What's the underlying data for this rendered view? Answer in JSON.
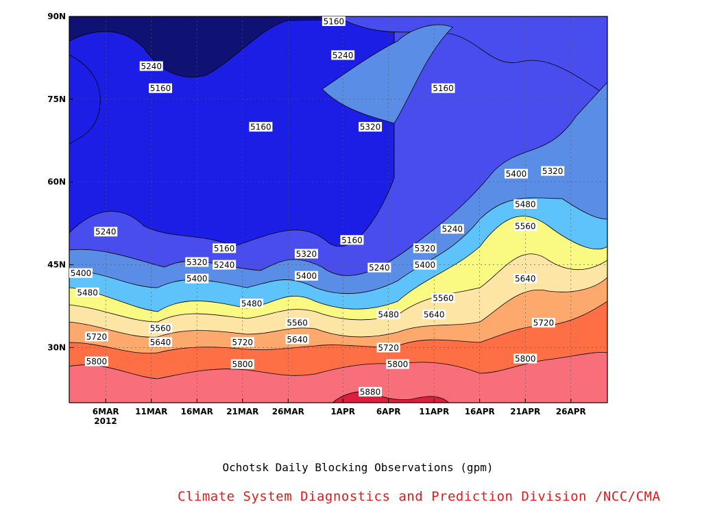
{
  "chart_data": {
    "type": "filled-contour",
    "title": "Ochotsk Daily Blocking Observations (gpm)",
    "xlabel": "",
    "ylabel": "",
    "x_range": [
      "2012-03-02",
      "2012-04-30"
    ],
    "y_range": [
      20,
      90
    ],
    "x_ticks": [
      "6MAR",
      "11MAR",
      "16MAR",
      "21MAR",
      "26MAR",
      "1APR",
      "6APR",
      "11APR",
      "16APR",
      "21APR",
      "26APR"
    ],
    "x_tick_dates": [
      "2012-03-06",
      "2012-03-11",
      "2012-03-16",
      "2012-03-21",
      "2012-03-26",
      "2012-04-01",
      "2012-04-06",
      "2012-04-11",
      "2012-04-16",
      "2012-04-21",
      "2012-04-26"
    ],
    "x_year_label": "2012",
    "y_ticks": [
      "90N",
      "75N",
      "60N",
      "45N",
      "30N"
    ],
    "y_tick_values": [
      90,
      75,
      60,
      45,
      30
    ],
    "grid": true,
    "contour_levels": [
      5160,
      5240,
      5320,
      5400,
      5480,
      5560,
      5640,
      5720,
      5800,
      5880
    ],
    "level_colors": [
      "#0f1273",
      "#1c1ee6",
      "#4a4ded",
      "#5a8ee6",
      "#5ec3fa",
      "#fafa82",
      "#fde5a5",
      "#fda86c",
      "#ff6f45",
      "#f86e7b",
      "#dc1f3c"
    ],
    "labels": [
      {
        "value": "5160",
        "date": "2012-03-31",
        "lat": 90
      },
      {
        "value": "5240",
        "date": "2012-04-01",
        "lat": 83
      },
      {
        "value": "5240",
        "date": "2012-03-11",
        "lat": 81
      },
      {
        "value": "5160",
        "date": "2012-03-12",
        "lat": 77
      },
      {
        "value": "5160",
        "date": "2012-04-12",
        "lat": 77
      },
      {
        "value": "5320",
        "date": "2012-04-04",
        "lat": 70
      },
      {
        "value": "5160",
        "date": "2012-03-23",
        "lat": 70
      },
      {
        "value": "5400",
        "date": "2012-04-20",
        "lat": 61.5
      },
      {
        "value": "5320",
        "date": "2012-04-24",
        "lat": 62
      },
      {
        "value": "5480",
        "date": "2012-04-21",
        "lat": 56
      },
      {
        "value": "5560",
        "date": "2012-04-21",
        "lat": 52
      },
      {
        "value": "5240",
        "date": "2012-03-06",
        "lat": 51
      },
      {
        "value": "5240",
        "date": "2012-04-13",
        "lat": 51.5
      },
      {
        "value": "5160",
        "date": "2012-04-02",
        "lat": 49.5
      },
      {
        "value": "5160",
        "date": "2012-03-19",
        "lat": 48
      },
      {
        "value": "5320",
        "date": "2012-04-10",
        "lat": 48
      },
      {
        "value": "5320",
        "date": "2012-03-28",
        "lat": 47
      },
      {
        "value": "5320",
        "date": "2012-03-16",
        "lat": 45.5
      },
      {
        "value": "5240",
        "date": "2012-03-19",
        "lat": 45
      },
      {
        "value": "5400",
        "date": "2012-04-10",
        "lat": 45
      },
      {
        "value": "5240",
        "date": "2012-04-05",
        "lat": 44.5
      },
      {
        "value": "5400",
        "date": "2012-03-02",
        "lat": 43.5
      },
      {
        "value": "5400",
        "date": "2012-03-16",
        "lat": 42.5
      },
      {
        "value": "5400",
        "date": "2012-03-28",
        "lat": 43
      },
      {
        "value": "5640",
        "date": "2012-04-21",
        "lat": 42.5
      },
      {
        "value": "5480",
        "date": "2012-03-04",
        "lat": 40
      },
      {
        "value": "5560",
        "date": "2012-04-12",
        "lat": 39
      },
      {
        "value": "5480",
        "date": "2012-03-22",
        "lat": 38
      },
      {
        "value": "5480",
        "date": "2012-04-06",
        "lat": 36
      },
      {
        "value": "5640",
        "date": "2012-04-11",
        "lat": 36
      },
      {
        "value": "5560",
        "date": "2012-03-27",
        "lat": 34.5
      },
      {
        "value": "5560",
        "date": "2012-03-12",
        "lat": 33.5
      },
      {
        "value": "5720",
        "date": "2012-04-23",
        "lat": 34.5
      },
      {
        "value": "5640",
        "date": "2012-03-27",
        "lat": 31.5
      },
      {
        "value": "5720",
        "date": "2012-03-05",
        "lat": 32
      },
      {
        "value": "5720",
        "date": "2012-03-21",
        "lat": 31
      },
      {
        "value": "5640",
        "date": "2012-03-12",
        "lat": 31
      },
      {
        "value": "5720",
        "date": "2012-04-06",
        "lat": 30
      },
      {
        "value": "5800",
        "date": "2012-04-21",
        "lat": 28
      },
      {
        "value": "5800",
        "date": "2012-03-05",
        "lat": 27.5
      },
      {
        "value": "5800",
        "date": "2012-03-21",
        "lat": 27
      },
      {
        "value": "5800",
        "date": "2012-04-07",
        "lat": 27
      },
      {
        "value": "5880",
        "date": "2012-04-04",
        "lat": 22
      }
    ]
  },
  "footer": {
    "caption": "Ochotsk Daily Blocking Observations (gpm)",
    "credit": "Climate System Diagnostics and Prediction Division /NCC/CMA"
  }
}
